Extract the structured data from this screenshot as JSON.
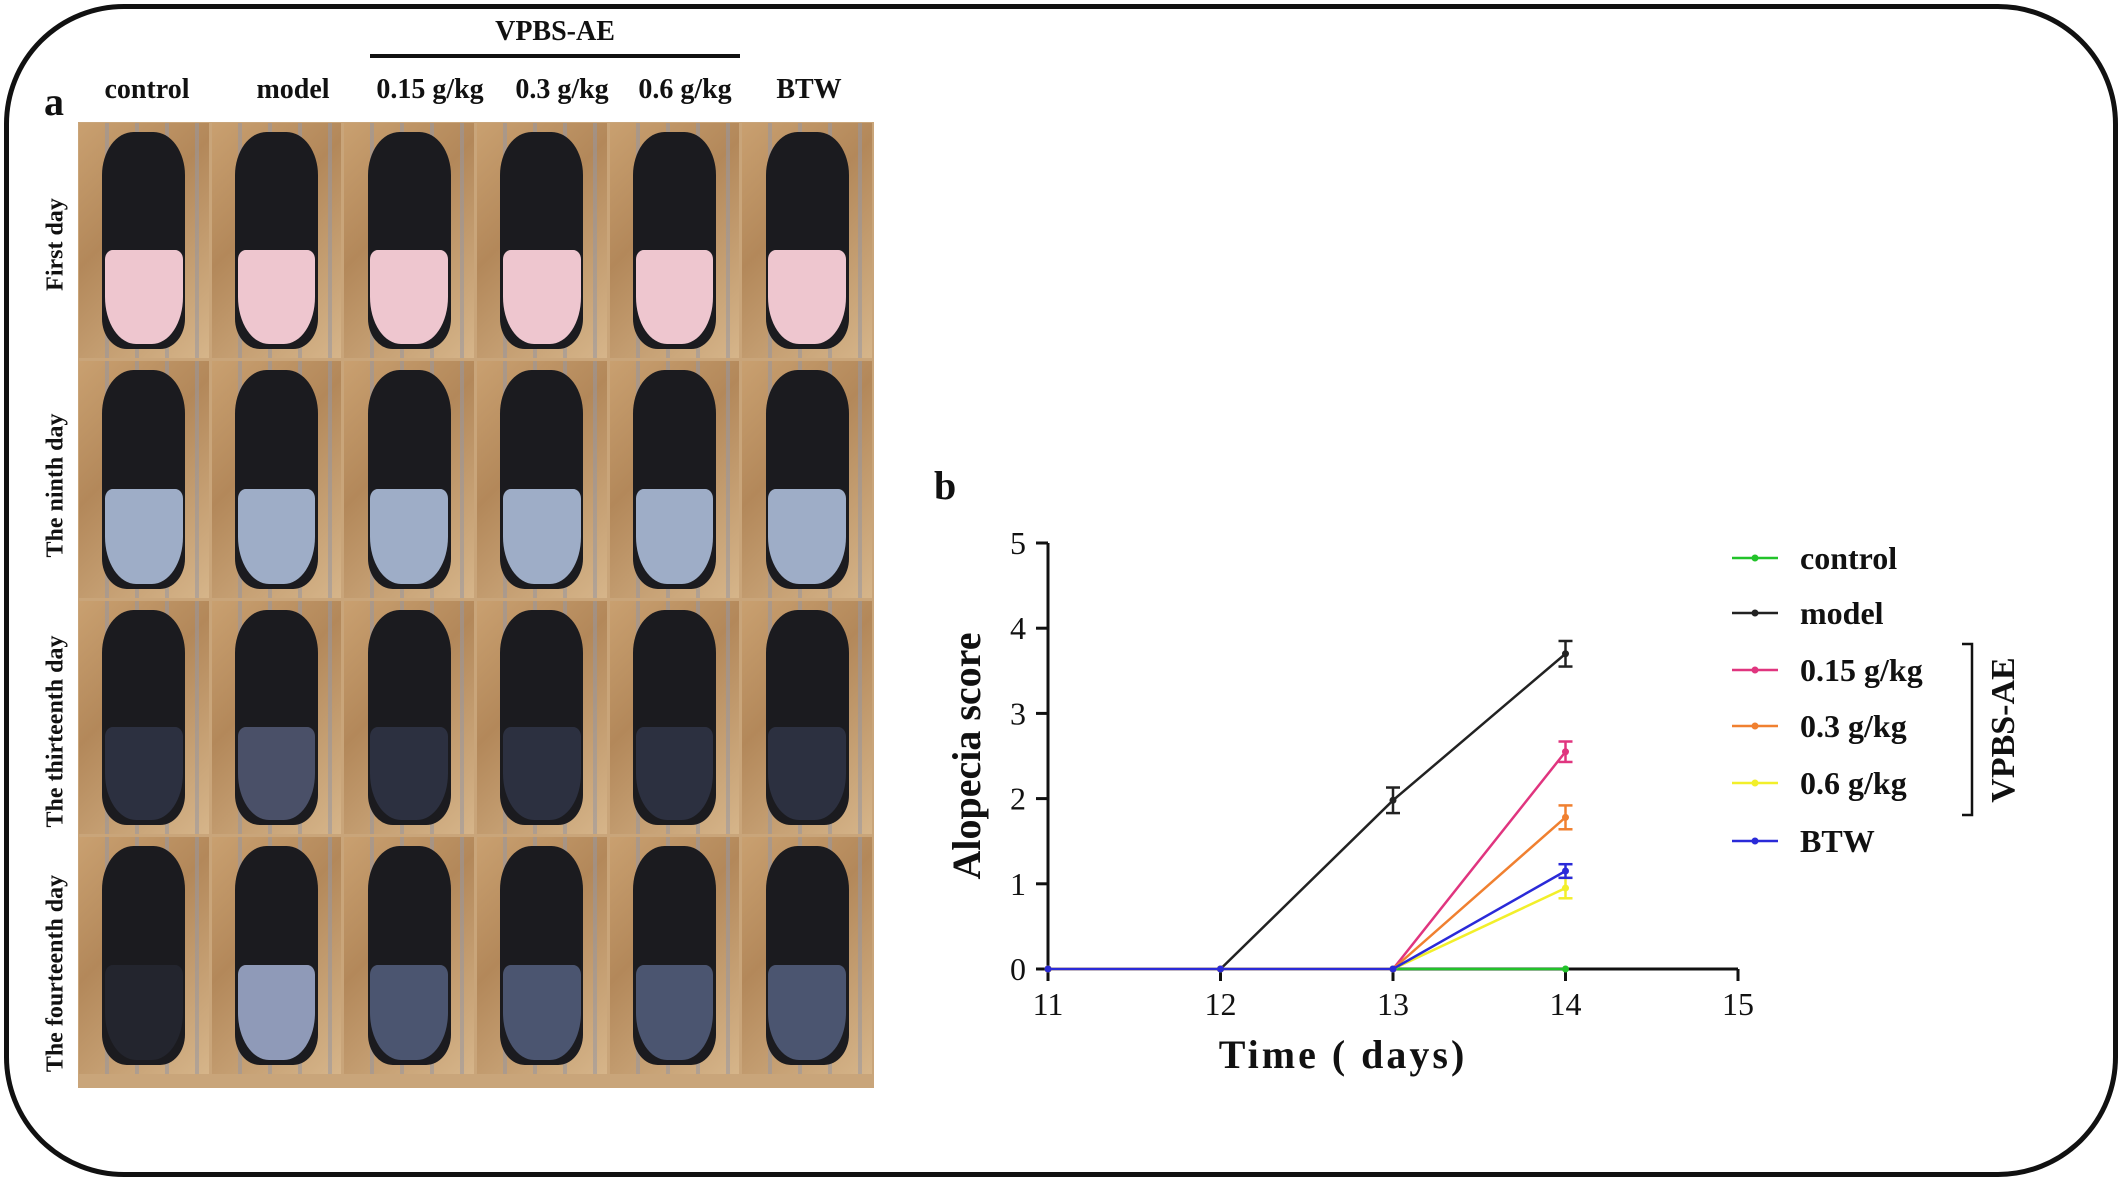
{
  "panel_a": {
    "letter": "a",
    "group_label": "VPBS-AE",
    "columns": [
      "control",
      "model",
      "0.15 g/kg",
      "0.3 g/kg",
      "0.6 g/kg",
      "BTW"
    ],
    "rows": [
      "First day",
      "The ninth day",
      "The thirteenth day",
      "The fourteenth day"
    ]
  },
  "panel_b": {
    "letter": "b"
  },
  "colors": {
    "control": "#22c32a",
    "model": "#222222",
    "0.15 g/kg": "#e0357f",
    "0.3 g/kg": "#f08030",
    "0.6 g/kg": "#f2ef2a",
    "BTW": "#2a2ad8",
    "skin_first": "#eec6cf",
    "skin_ninth": "#9eadc7"
  },
  "chart_data": {
    "type": "line",
    "xlabel": "Time ( days)",
    "ylabel": "Alopecia score",
    "xlim": [
      11,
      15
    ],
    "ylim": [
      0,
      5
    ],
    "xticks": [
      "11",
      "12",
      "13",
      "14",
      "15"
    ],
    "yticks": [
      "0",
      "1",
      "2",
      "3",
      "4",
      "5"
    ],
    "legend_group_label": "VPBS-AE",
    "legend_position": "right",
    "series": [
      {
        "name": "control",
        "x": [
          11,
          12,
          13,
          14
        ],
        "y": [
          0,
          0,
          0,
          0
        ],
        "err": [
          0,
          0,
          0,
          0
        ]
      },
      {
        "name": "model",
        "x": [
          11,
          12,
          13,
          14
        ],
        "y": [
          0,
          0,
          1.98,
          3.7
        ],
        "err": [
          0,
          0,
          0.15,
          0.15
        ]
      },
      {
        "name": "0.15 g/kg",
        "x": [
          11,
          12,
          13,
          14
        ],
        "y": [
          0,
          0,
          0,
          2.55
        ],
        "err": [
          0,
          0,
          0,
          0.12
        ]
      },
      {
        "name": "0.3 g/kg",
        "x": [
          11,
          12,
          13,
          14
        ],
        "y": [
          0,
          0,
          0,
          1.78
        ],
        "err": [
          0,
          0,
          0,
          0.14
        ]
      },
      {
        "name": "0.6 g/kg",
        "x": [
          11,
          12,
          13,
          14
        ],
        "y": [
          0,
          0,
          0,
          0.95
        ],
        "err": [
          0,
          0,
          0,
          0.12
        ]
      },
      {
        "name": "BTW",
        "x": [
          11,
          12,
          13,
          14
        ],
        "y": [
          0,
          0,
          0,
          1.15
        ],
        "err": [
          0,
          0,
          0,
          0.08
        ]
      }
    ]
  }
}
